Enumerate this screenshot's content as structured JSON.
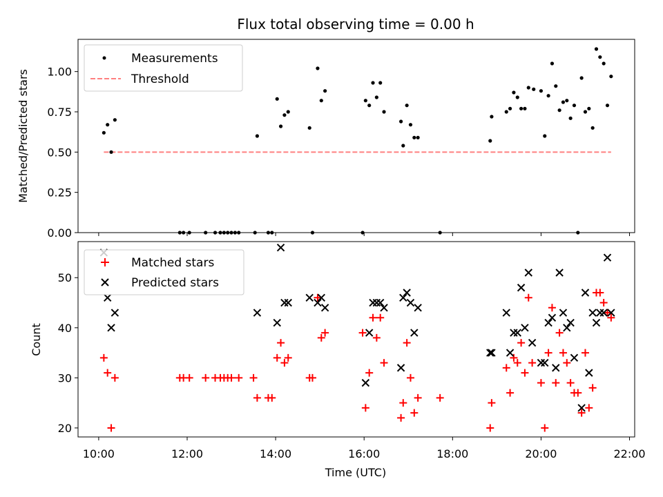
{
  "chart_data": [
    {
      "type": "scatter",
      "title": "Flux total observing time = 0.00 h",
      "xlabel": "",
      "ylabel": "Matched/Predicted stars",
      "xlim": [
        "09:32",
        "22:07"
      ],
      "ylim": [
        0,
        1.2
      ],
      "yticks": [
        "0.00",
        "0.25",
        "0.50",
        "0.75",
        "1.00"
      ],
      "legend_position": "top-left",
      "series": [
        {
          "name": "Measurements",
          "marker": "dot",
          "color": "#000000",
          "points": [
            [
              "10:07",
              0.62
            ],
            [
              "10:12",
              0.67
            ],
            [
              "10:17",
              0.5
            ],
            [
              "10:22",
              0.7
            ],
            [
              "11:50",
              0.0
            ],
            [
              "11:55",
              0.0
            ],
            [
              "12:03",
              0.0
            ],
            [
              "12:25",
              0.0
            ],
            [
              "12:38",
              0.0
            ],
            [
              "12:45",
              0.0
            ],
            [
              "12:50",
              0.0
            ],
            [
              "12:55",
              0.0
            ],
            [
              "13:00",
              0.0
            ],
            [
              "13:05",
              0.0
            ],
            [
              "13:10",
              0.0
            ],
            [
              "13:32",
              0.0
            ],
            [
              "13:35",
              0.6
            ],
            [
              "13:50",
              0.0
            ],
            [
              "13:55",
              0.0
            ],
            [
              "14:02",
              0.83
            ],
            [
              "14:07",
              0.66
            ],
            [
              "14:12",
              0.73
            ],
            [
              "14:17",
              0.75
            ],
            [
              "14:46",
              0.65
            ],
            [
              "14:50",
              0.0
            ],
            [
              "14:57",
              1.02
            ],
            [
              "15:02",
              0.82
            ],
            [
              "15:07",
              0.88
            ],
            [
              "15:58",
              0.0
            ],
            [
              "16:02",
              0.82
            ],
            [
              "16:07",
              0.79
            ],
            [
              "16:12",
              0.93
            ],
            [
              "16:17",
              0.84
            ],
            [
              "16:22",
              0.93
            ],
            [
              "16:27",
              0.75
            ],
            [
              "16:50",
              0.69
            ],
            [
              "16:53",
              0.54
            ],
            [
              "16:58",
              0.79
            ],
            [
              "17:03",
              0.67
            ],
            [
              "17:08",
              0.59
            ],
            [
              "17:13",
              0.59
            ],
            [
              "17:43",
              0.0
            ],
            [
              "18:51",
              0.57
            ],
            [
              "18:53",
              0.72
            ],
            [
              "19:13",
              0.75
            ],
            [
              "19:18",
              0.77
            ],
            [
              "19:23",
              0.87
            ],
            [
              "19:28",
              0.84
            ],
            [
              "19:33",
              0.77
            ],
            [
              "19:38",
              0.77
            ],
            [
              "19:43",
              0.9
            ],
            [
              "19:50",
              0.89
            ],
            [
              "20:00",
              0.88
            ],
            [
              "20:05",
              0.6
            ],
            [
              "20:10",
              0.85
            ],
            [
              "20:15",
              1.05
            ],
            [
              "20:20",
              0.91
            ],
            [
              "20:25",
              0.76
            ],
            [
              "20:30",
              0.81
            ],
            [
              "20:35",
              0.82
            ],
            [
              "20:40",
              0.71
            ],
            [
              "20:45",
              0.79
            ],
            [
              "20:50",
              0.0
            ],
            [
              "20:55",
              0.96
            ],
            [
              "21:00",
              0.75
            ],
            [
              "21:05",
              0.77
            ],
            [
              "21:10",
              0.65
            ],
            [
              "21:15",
              1.14
            ],
            [
              "21:20",
              1.09
            ],
            [
              "21:25",
              1.05
            ],
            [
              "21:30",
              0.79
            ],
            [
              "21:35",
              0.97
            ]
          ]
        },
        {
          "name": "Threshold",
          "style": "dashed",
          "color": "#ff7f7f",
          "x": [
            "10:07",
            "21:35"
          ],
          "y": [
            0.5,
            0.5
          ]
        }
      ]
    },
    {
      "type": "scatter",
      "title": "",
      "xlabel": "Time (UTC)",
      "ylabel": "Count",
      "xlim": [
        "09:32",
        "22:07"
      ],
      "ylim": [
        18.2,
        57.2
      ],
      "yticks": [
        "20",
        "30",
        "40",
        "50"
      ],
      "xticks": [
        "10:00",
        "12:00",
        "14:00",
        "16:00",
        "18:00",
        "20:00",
        "22:00"
      ],
      "legend_position": "top-left",
      "series": [
        {
          "name": "Matched stars",
          "marker": "plus",
          "color": "#ff0000",
          "points": [
            [
              "10:07",
              34
            ],
            [
              "10:12",
              31
            ],
            [
              "10:17",
              20
            ],
            [
              "10:22",
              30
            ],
            [
              "11:50",
              30
            ],
            [
              "11:55",
              30
            ],
            [
              "12:03",
              30
            ],
            [
              "12:25",
              30
            ],
            [
              "12:38",
              30
            ],
            [
              "12:45",
              30
            ],
            [
              "12:50",
              30
            ],
            [
              "12:55",
              30
            ],
            [
              "13:00",
              30
            ],
            [
              "13:10",
              30
            ],
            [
              "13:30",
              30
            ],
            [
              "13:35",
              26
            ],
            [
              "13:50",
              26
            ],
            [
              "13:55",
              26
            ],
            [
              "14:02",
              34
            ],
            [
              "14:07",
              37
            ],
            [
              "14:12",
              33
            ],
            [
              "14:17",
              34
            ],
            [
              "14:46",
              30
            ],
            [
              "14:50",
              30
            ],
            [
              "14:57",
              46
            ],
            [
              "15:02",
              38
            ],
            [
              "15:07",
              39
            ],
            [
              "15:58",
              39
            ],
            [
              "16:02",
              24
            ],
            [
              "16:07",
              31
            ],
            [
              "16:12",
              42
            ],
            [
              "16:17",
              38
            ],
            [
              "16:22",
              42
            ],
            [
              "16:27",
              33
            ],
            [
              "16:50",
              22
            ],
            [
              "16:53",
              25
            ],
            [
              "16:58",
              37
            ],
            [
              "17:03",
              30
            ],
            [
              "17:08",
              23
            ],
            [
              "17:13",
              26
            ],
            [
              "17:43",
              26
            ],
            [
              "18:51",
              20
            ],
            [
              "18:53",
              25
            ],
            [
              "19:13",
              32
            ],
            [
              "19:18",
              27
            ],
            [
              "19:23",
              34
            ],
            [
              "19:28",
              33
            ],
            [
              "19:33",
              37
            ],
            [
              "19:38",
              31
            ],
            [
              "19:43",
              46
            ],
            [
              "19:48",
              33
            ],
            [
              "20:00",
              29
            ],
            [
              "20:05",
              20
            ],
            [
              "20:10",
              35
            ],
            [
              "20:15",
              44
            ],
            [
              "20:20",
              29
            ],
            [
              "20:25",
              39
            ],
            [
              "20:30",
              35
            ],
            [
              "20:35",
              33
            ],
            [
              "20:40",
              29
            ],
            [
              "20:45",
              27
            ],
            [
              "20:50",
              27
            ],
            [
              "20:55",
              23
            ],
            [
              "21:00",
              35
            ],
            [
              "21:05",
              24
            ],
            [
              "21:10",
              28
            ],
            [
              "21:15",
              47
            ],
            [
              "21:20",
              47
            ],
            [
              "21:25",
              45
            ],
            [
              "21:30",
              43
            ],
            [
              "21:35",
              42
            ]
          ]
        },
        {
          "name": "Predicted stars",
          "marker": "x",
          "color": "#000000",
          "points": [
            [
              "10:07",
              55
            ],
            [
              "10:12",
              46
            ],
            [
              "10:17",
              40
            ],
            [
              "10:22",
              43
            ],
            [
              "13:35",
              43
            ],
            [
              "14:02",
              41
            ],
            [
              "14:07",
              56
            ],
            [
              "14:12",
              45
            ],
            [
              "14:17",
              45
            ],
            [
              "14:46",
              46
            ],
            [
              "14:57",
              45
            ],
            [
              "15:02",
              46
            ],
            [
              "15:07",
              44
            ],
            [
              "16:02",
              29
            ],
            [
              "16:07",
              39
            ],
            [
              "16:12",
              45
            ],
            [
              "16:17",
              45
            ],
            [
              "16:22",
              45
            ],
            [
              "16:27",
              44
            ],
            [
              "16:50",
              32
            ],
            [
              "16:53",
              46
            ],
            [
              "16:58",
              47
            ],
            [
              "17:03",
              45
            ],
            [
              "17:08",
              39
            ],
            [
              "17:13",
              44
            ],
            [
              "18:51",
              35
            ],
            [
              "18:53",
              35
            ],
            [
              "19:13",
              43
            ],
            [
              "19:18",
              35
            ],
            [
              "19:23",
              39
            ],
            [
              "19:28",
              39
            ],
            [
              "19:33",
              48
            ],
            [
              "19:38",
              40
            ],
            [
              "19:43",
              51
            ],
            [
              "19:48",
              37
            ],
            [
              "20:00",
              33
            ],
            [
              "20:05",
              33
            ],
            [
              "20:10",
              41
            ],
            [
              "20:15",
              42
            ],
            [
              "20:20",
              32
            ],
            [
              "20:25",
              51
            ],
            [
              "20:30",
              43
            ],
            [
              "20:35",
              40
            ],
            [
              "20:40",
              41
            ],
            [
              "20:45",
              34
            ],
            [
              "20:55",
              24
            ],
            [
              "21:00",
              47
            ],
            [
              "21:05",
              31
            ],
            [
              "21:10",
              43
            ],
            [
              "21:15",
              41
            ],
            [
              "21:20",
              43
            ],
            [
              "21:25",
              43
            ],
            [
              "21:30",
              54
            ],
            [
              "21:35",
              43
            ]
          ]
        }
      ]
    }
  ]
}
